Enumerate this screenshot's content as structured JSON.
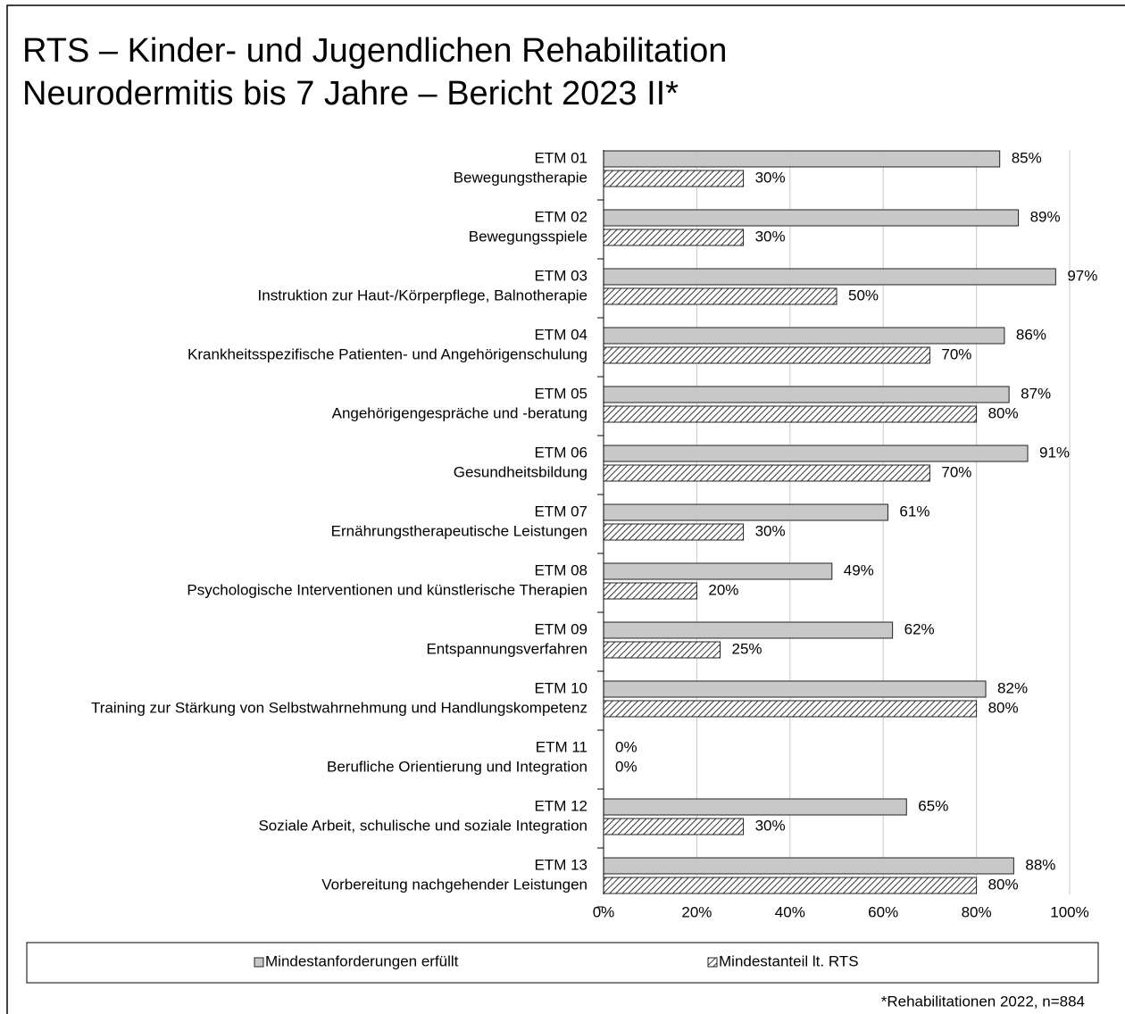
{
  "chart_data": {
    "type": "bar",
    "orientation": "horizontal",
    "title": "RTS – Kinder- und Jugendlichen Rehabilitation",
    "subtitle": "Neurodermitis bis 7 Jahre – Bericht 2023 II*",
    "note": "*Rehabilitationen 2022, n=884",
    "categories": [
      [
        "ETM 01",
        "Bewegungstherapie"
      ],
      [
        "ETM 02",
        "Bewegungsspiele"
      ],
      [
        "ETM 03",
        "Instruktion zur Haut-/Körperpflege, Balnotherapie"
      ],
      [
        "ETM 04",
        "Krankheitsspezifische Patienten- und Angehörigenschulung"
      ],
      [
        "ETM 05",
        "Angehörigengespräche und -beratung"
      ],
      [
        "ETM 06",
        "Gesundheitsbildung"
      ],
      [
        "ETM 07",
        "Ernährungstherapeutische Leistungen"
      ],
      [
        "ETM 08",
        "Psychologische Interventionen und künstlerische Therapien"
      ],
      [
        "ETM 09",
        "Entspannungsverfahren"
      ],
      [
        "ETM 10",
        "Training zur Stärkung von Selbstwahrnehmung und Handlungskompetenz"
      ],
      [
        "ETM 11",
        "Berufliche Orientierung und Integration"
      ],
      [
        "ETM 12",
        "Soziale Arbeit, schulische und soziale Integration"
      ],
      [
        "ETM 13",
        "Vorbereitung nachgehender Leistungen"
      ]
    ],
    "series": [
      {
        "name": "Mindestanforderungen erfüllt",
        "color": "#c8c8c8",
        "values": [
          85,
          89,
          97,
          86,
          87,
          91,
          61,
          49,
          62,
          82,
          0,
          65,
          88
        ],
        "value_labels": [
          "85%",
          "89%",
          "97%",
          "86%",
          "87%",
          "91%",
          "61%",
          "49%",
          "62%",
          "82%",
          "0%",
          "65%",
          "88%"
        ]
      },
      {
        "name": "Mindestanteil lt. RTS",
        "color": "#333333",
        "hatched": true,
        "values": [
          30,
          30,
          50,
          70,
          80,
          70,
          30,
          20,
          25,
          80,
          0,
          30,
          80
        ],
        "value_labels": [
          "30%",
          "30%",
          "50%",
          "70%",
          "80%",
          "70%",
          "30%",
          "20%",
          "25%",
          "80%",
          "0%",
          "30%",
          "80%"
        ]
      }
    ],
    "xlim": [
      0,
      100
    ],
    "xticks": [
      {
        "value": 0,
        "label": "0%"
      },
      {
        "value": 20,
        "label": "20%"
      },
      {
        "value": 40,
        "label": "40%"
      },
      {
        "value": 60,
        "label": "60%"
      },
      {
        "value": 80,
        "label": "80%"
      },
      {
        "value": 100,
        "label": "100%"
      }
    ],
    "grid": true,
    "legend": "bottom"
  }
}
